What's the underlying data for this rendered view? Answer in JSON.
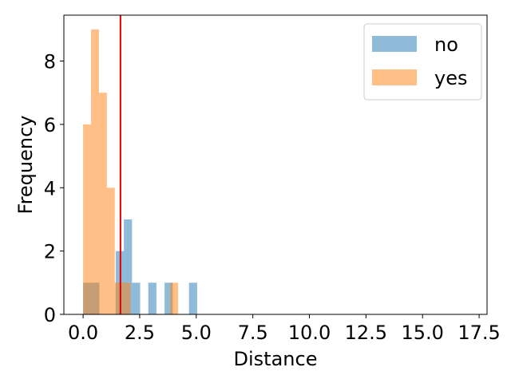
{
  "chart_data": {
    "type": "bar",
    "title": "",
    "xlabel": "Distance",
    "ylabel": "Frequency",
    "xlim": [
      -0.85,
      17.85
    ],
    "ylim": [
      0,
      9.45
    ],
    "xticks": [
      "0.0",
      "2.5",
      "5.0",
      "7.5",
      "10.0",
      "12.5",
      "15.0",
      "17.5"
    ],
    "xtick_values": [
      0,
      2.5,
      5,
      7.5,
      10,
      12.5,
      15,
      17.5
    ],
    "yticks": [
      "0",
      "2",
      "4",
      "6",
      "8"
    ],
    "ytick_values": [
      0,
      2,
      4,
      6,
      8
    ],
    "grid": false,
    "legend_position": "top-right",
    "threshold_line": {
      "x": 1.65,
      "color": "#e00000"
    },
    "series": [
      {
        "name": "no",
        "color": "#1f77b4",
        "bins": [
          {
            "x0": 0.0,
            "x1": 0.36,
            "count": 1
          },
          {
            "x0": 0.36,
            "x1": 0.72,
            "count": 1
          },
          {
            "x0": 1.44,
            "x1": 1.8,
            "count": 2
          },
          {
            "x0": 1.8,
            "x1": 2.16,
            "count": 3
          },
          {
            "x0": 2.16,
            "x1": 2.52,
            "count": 1
          },
          {
            "x0": 2.88,
            "x1": 3.24,
            "count": 1
          },
          {
            "x0": 3.6,
            "x1": 3.96,
            "count": 1
          },
          {
            "x0": 4.68,
            "x1": 5.04,
            "count": 1
          }
        ]
      },
      {
        "name": "yes",
        "color": "#ff7f0e",
        "bins": [
          {
            "x0": 0.0,
            "x1": 0.35,
            "count": 6
          },
          {
            "x0": 0.35,
            "x1": 0.7,
            "count": 9
          },
          {
            "x0": 0.7,
            "x1": 1.05,
            "count": 7
          },
          {
            "x0": 1.05,
            "x1": 1.4,
            "count": 4
          },
          {
            "x0": 1.4,
            "x1": 1.75,
            "count": 1
          },
          {
            "x0": 1.75,
            "x1": 2.1,
            "count": 1
          },
          {
            "x0": 3.85,
            "x1": 4.2,
            "count": 1
          }
        ]
      }
    ]
  }
}
